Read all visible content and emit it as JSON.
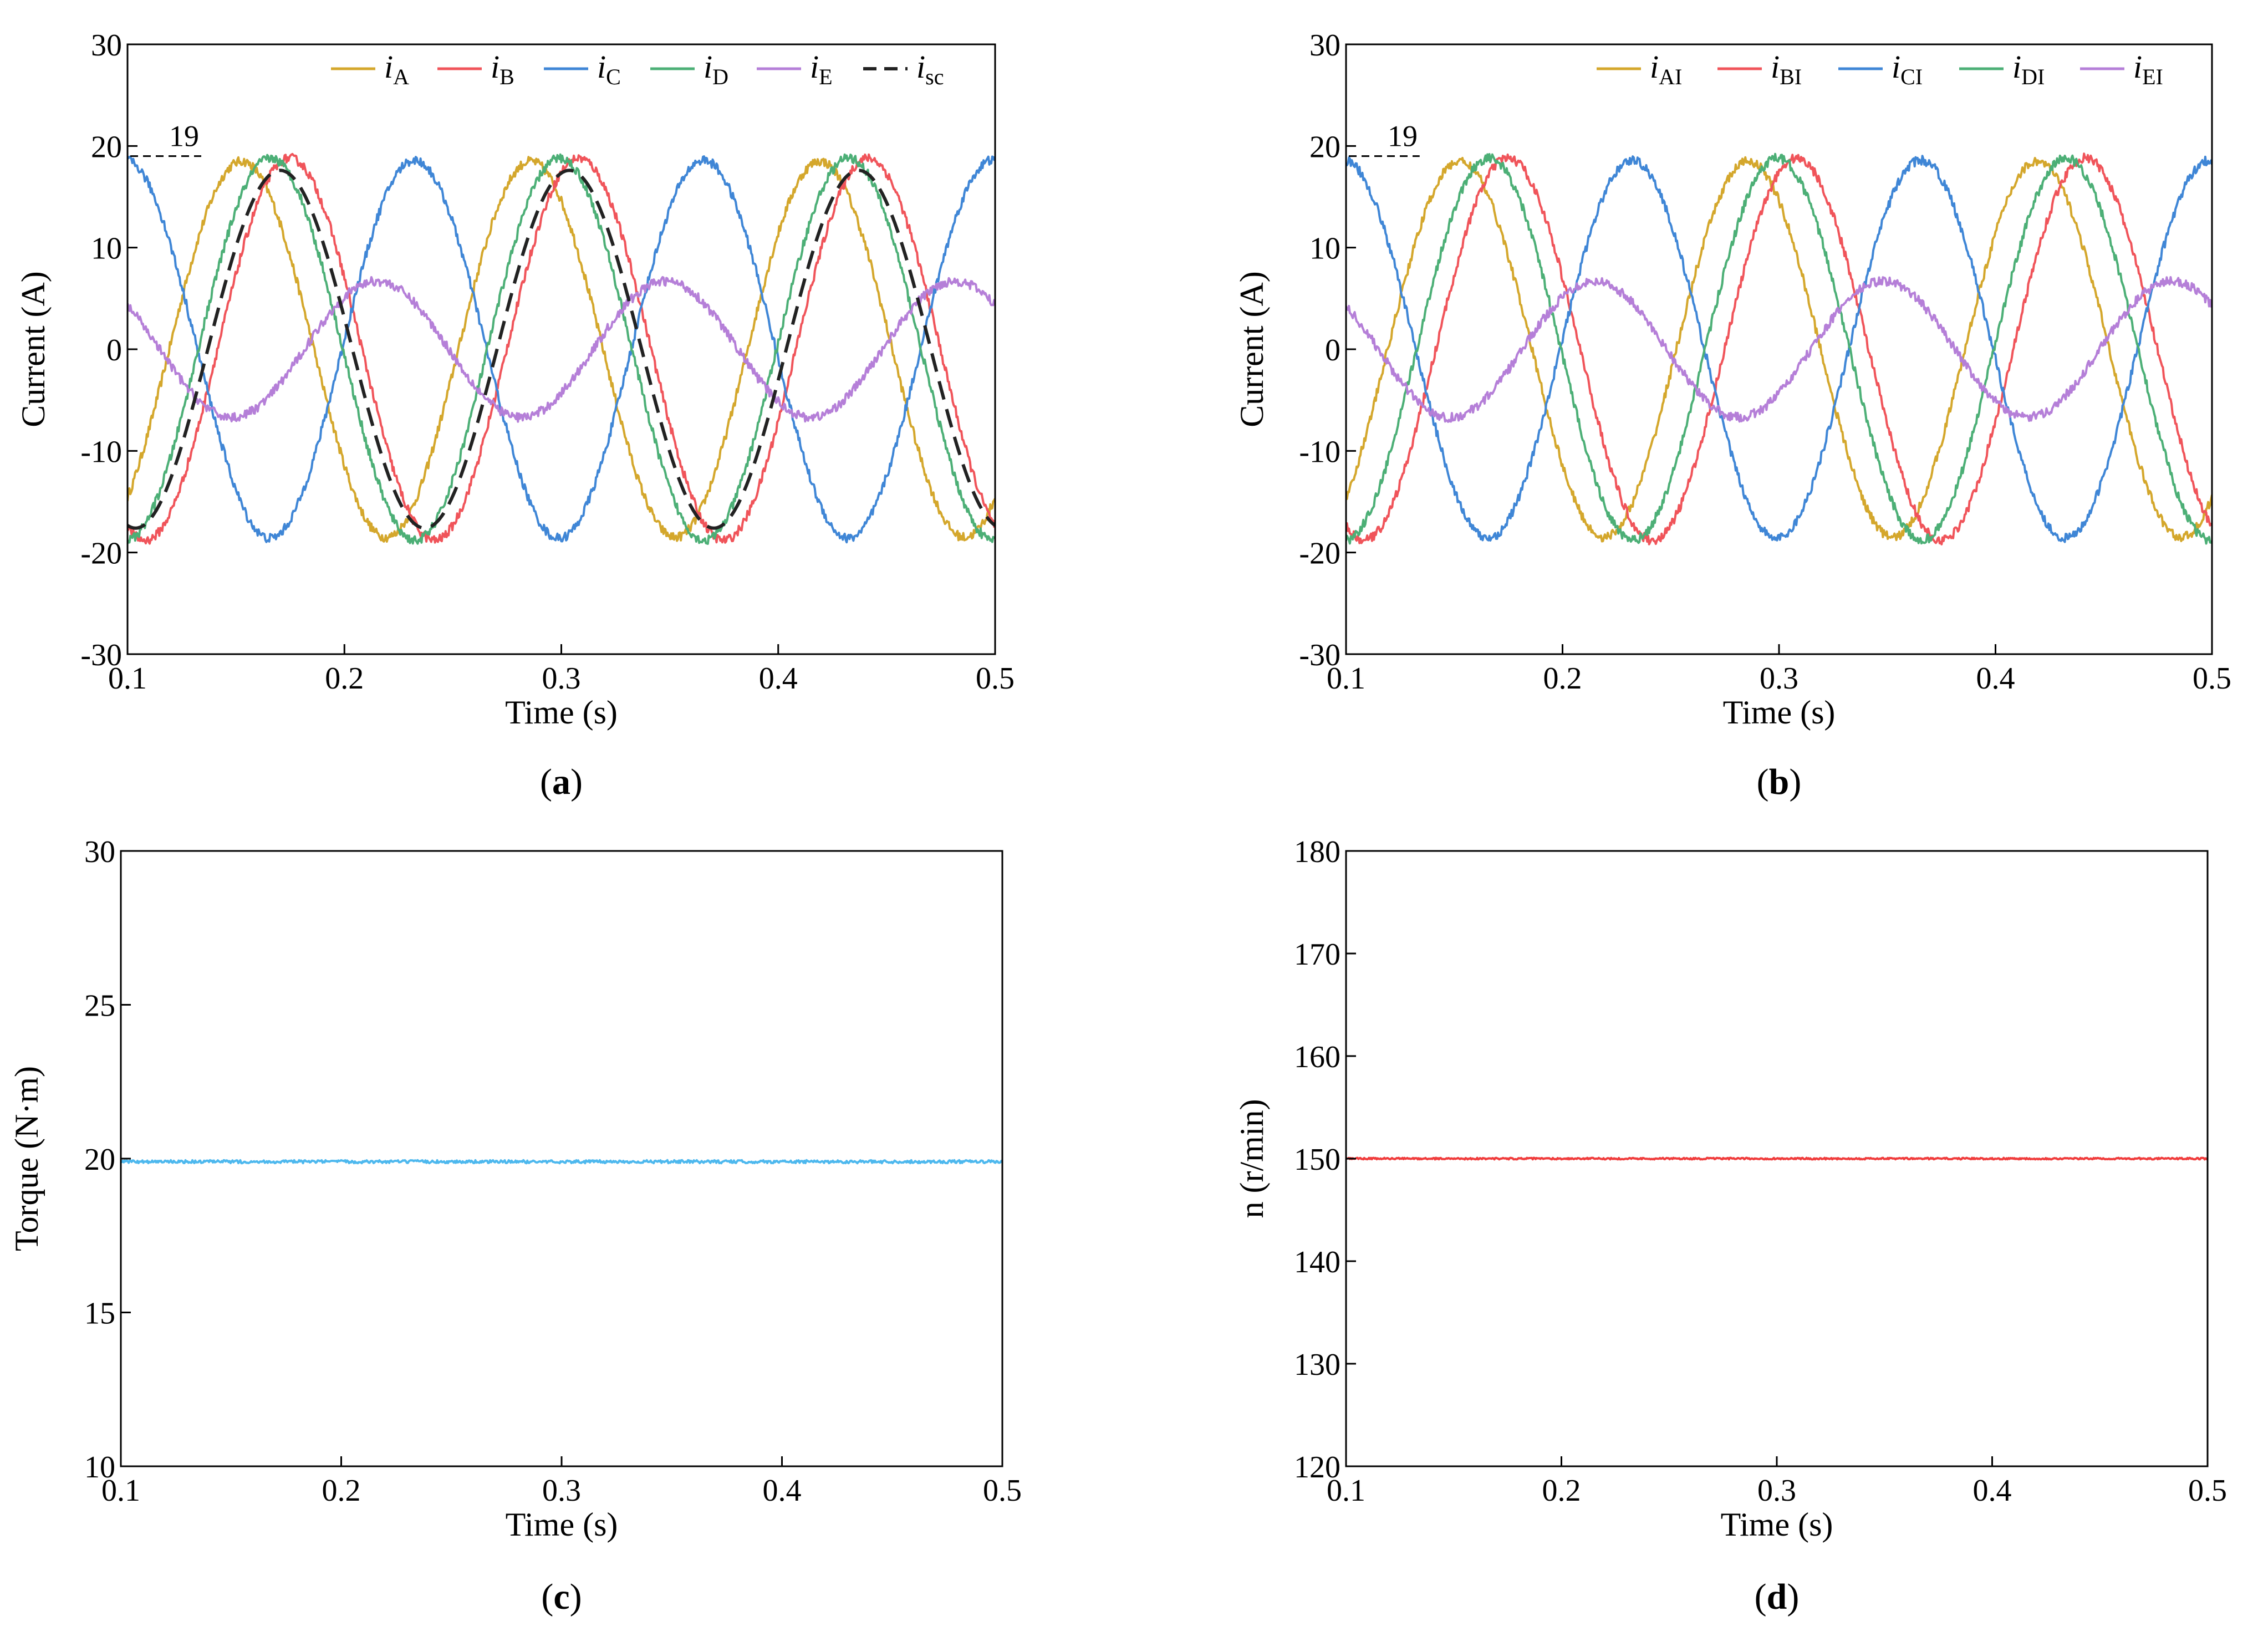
{
  "chart_data": [
    {
      "panel": "a",
      "type": "line",
      "xlabel": "Time (s)",
      "ylabel": "Current (A)",
      "xlim": [
        0.1,
        0.5
      ],
      "ylim": [
        -30,
        30
      ],
      "xticks": [
        0.1,
        0.2,
        0.3,
        0.4,
        0.5
      ],
      "yticks": [
        -30,
        -20,
        -10,
        0,
        10,
        20,
        30
      ],
      "annotation": "19",
      "annotation_value": 19,
      "legend_position": "top-right",
      "series": [
        {
          "name": "A",
          "italic": "i",
          "sub": "A",
          "color": "#D4A72C",
          "amplitude": 18.5,
          "phase_deg": 38,
          "frequency_hz": 7.5,
          "dashed": false
        },
        {
          "name": "B",
          "italic": "i",
          "sub": "B",
          "color": "#F0545A",
          "amplitude": 18.8,
          "phase_deg": -22,
          "frequency_hz": 7.5,
          "dashed": false
        },
        {
          "name": "C",
          "italic": "i",
          "sub": "C",
          "color": "#3F86D6",
          "amplitude": 18.6,
          "phase_deg": 183,
          "frequency_hz": 7.5,
          "dashed": false
        },
        {
          "name": "D",
          "italic": "i",
          "sub": "D",
          "color": "#4CAF76",
          "amplitude": 18.8,
          "phase_deg": 2,
          "frequency_hz": 7.5,
          "dashed": false
        },
        {
          "name": "E",
          "italic": "i",
          "sub": "E",
          "color": "#B57FD8",
          "amplitude": 6.7,
          "phase_deg": 230,
          "frequency_hz": 7.5,
          "dashed": false
        },
        {
          "name": "sc",
          "italic": "i",
          "sub": "sc",
          "color": "#222222",
          "amplitude": 17.6,
          "phase_deg": -10,
          "frequency_hz": 7.5,
          "dashed": true
        }
      ]
    },
    {
      "panel": "b",
      "type": "line",
      "xlabel": "Time (s)",
      "ylabel": "Current (A)",
      "xlim": [
        0.1,
        0.5
      ],
      "ylim": [
        -30,
        30
      ],
      "xticks": [
        0.1,
        0.2,
        0.3,
        0.4,
        0.5
      ],
      "yticks": [
        -30,
        -20,
        -10,
        0,
        10,
        20,
        30
      ],
      "annotation": "19",
      "annotation_value": 19,
      "legend_position": "top-right",
      "series": [
        {
          "name": "AI",
          "italic": "i",
          "sub": "AI",
          "color": "#D4A72C",
          "amplitude": 18.5,
          "phase_deg": 38,
          "frequency_hz": 7.5,
          "dashed": false
        },
        {
          "name": "BI",
          "italic": "i",
          "sub": "BI",
          "color": "#F0545A",
          "amplitude": 18.8,
          "phase_deg": -22,
          "frequency_hz": 7.5,
          "dashed": false
        },
        {
          "name": "CI",
          "italic": "i",
          "sub": "CI",
          "color": "#3F86D6",
          "amplitude": 18.6,
          "phase_deg": 183,
          "frequency_hz": 7.5,
          "dashed": false
        },
        {
          "name": "DI",
          "italic": "i",
          "sub": "DI",
          "color": "#4CAF76",
          "amplitude": 18.8,
          "phase_deg": 2,
          "frequency_hz": 7.5,
          "dashed": false
        },
        {
          "name": "EI",
          "italic": "i",
          "sub": "EI",
          "color": "#B57FD8",
          "amplitude": 6.7,
          "phase_deg": 230,
          "frequency_hz": 7.5,
          "dashed": false
        }
      ]
    },
    {
      "panel": "c",
      "type": "line",
      "xlabel": "Time (s)",
      "ylabel": "Torque (N·m)",
      "xlim": [
        0.1,
        0.5
      ],
      "ylim": [
        10,
        30
      ],
      "xticks": [
        0.1,
        0.2,
        0.3,
        0.4,
        0.5
      ],
      "yticks": [
        10,
        15,
        20,
        25,
        30
      ],
      "series": [
        {
          "name": "",
          "color": "#4DB8EE",
          "constant": 19.9,
          "ripple": 0.05
        }
      ]
    },
    {
      "panel": "d",
      "type": "line",
      "xlabel": "Time (s)",
      "ylabel": "n (r/min)",
      "xlim": [
        0.1,
        0.5
      ],
      "ylim": [
        120,
        180
      ],
      "xticks": [
        0.1,
        0.2,
        0.3,
        0.4,
        0.5
      ],
      "yticks": [
        120,
        130,
        140,
        150,
        160,
        170,
        180
      ],
      "series": [
        {
          "name": "",
          "color": "#F03C3C",
          "constant": 150,
          "ripple": 0.08
        }
      ]
    }
  ],
  "panel_labels": [
    "a",
    "b",
    "c",
    "d"
  ]
}
